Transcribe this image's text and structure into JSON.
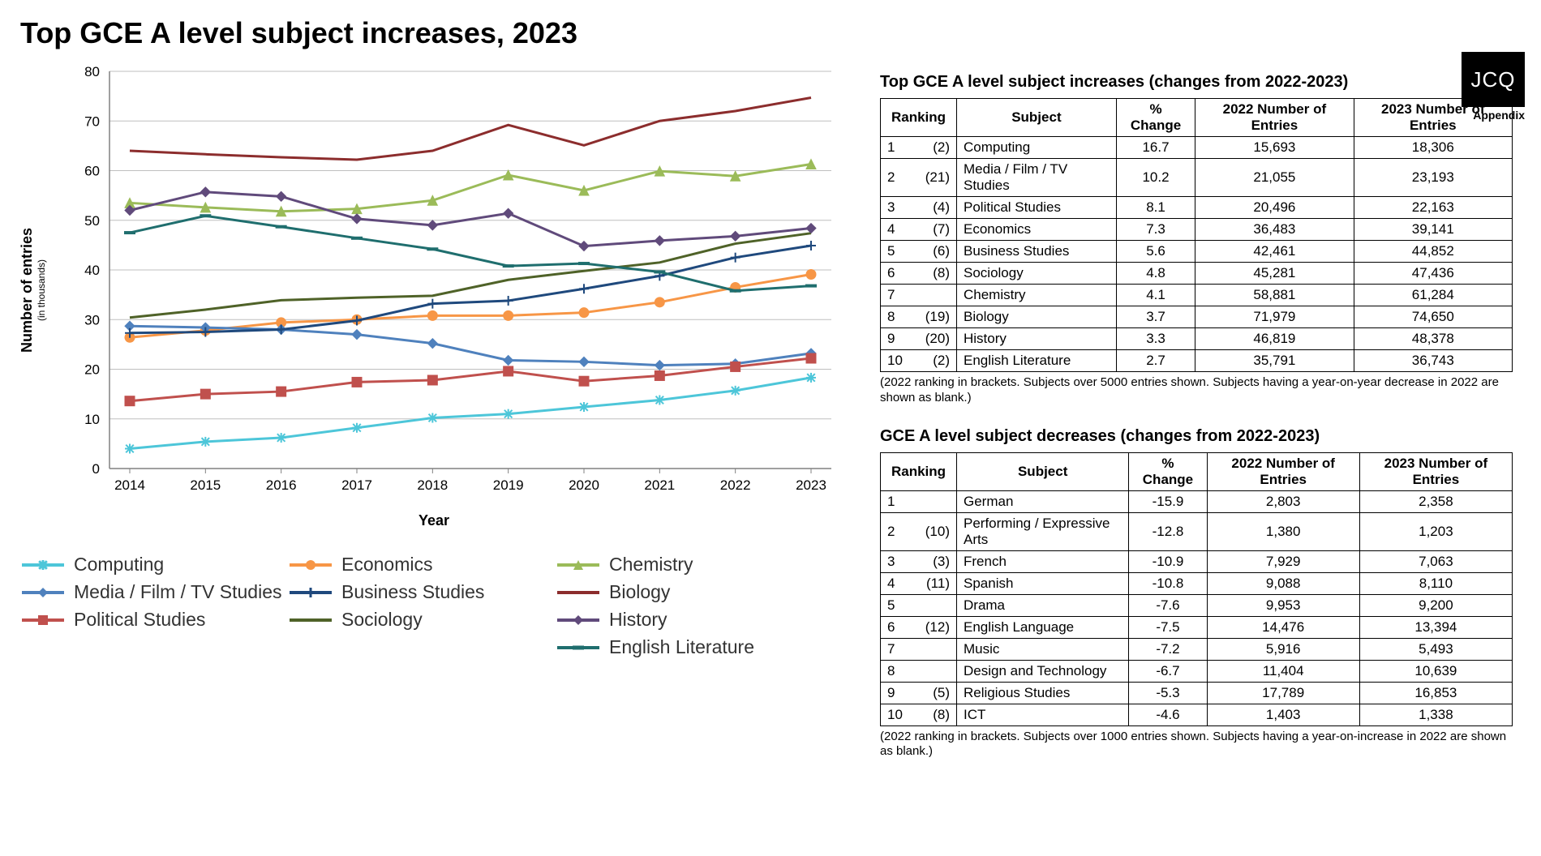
{
  "title": "Top GCE A level subject increases, 2023",
  "logo": {
    "text": "JCQ",
    "subtext": "Appendix"
  },
  "chart": {
    "type": "line",
    "y_label": "Number of entries",
    "y_sublabel": "(in thousands)",
    "x_label": "Year",
    "background_color": "#ffffff",
    "gridline_color": "#bfbfbf",
    "axis_color": "#808080",
    "tick_font_size": 17,
    "label_font_size": 18,
    "categories": [
      "2014",
      "2015",
      "2016",
      "2017",
      "2018",
      "2019",
      "2020",
      "2021",
      "2022",
      "2023"
    ],
    "ylim": [
      0,
      80
    ],
    "ytick_step": 10,
    "line_width": 3,
    "marker_size": 6,
    "series": [
      {
        "name": "Computing",
        "color": "#4dc6d9",
        "marker": "star",
        "values": [
          4.0,
          5.4,
          6.2,
          8.2,
          10.2,
          11.0,
          12.4,
          13.8,
          15.7,
          18.3
        ]
      },
      {
        "name": "Economics",
        "color": "#f79646",
        "marker": "circle",
        "values": [
          26.4,
          27.8,
          29.4,
          30.0,
          30.8,
          30.8,
          31.4,
          33.5,
          36.5,
          39.1
        ]
      },
      {
        "name": "Chemistry",
        "color": "#9bbb59",
        "marker": "triangle",
        "values": [
          53.5,
          52.6,
          51.8,
          52.3,
          54.0,
          59.1,
          56.0,
          59.9,
          58.9,
          61.3
        ]
      },
      {
        "name": "Media / Film / TV Studies",
        "color": "#4f81bd",
        "marker": "diamond",
        "values": [
          28.7,
          28.4,
          28.0,
          27.0,
          25.2,
          21.8,
          21.5,
          20.8,
          21.1,
          23.2
        ]
      },
      {
        "name": "Business Studies",
        "color": "#1f497d",
        "marker": "plus",
        "values": [
          27.3,
          27.5,
          28.0,
          29.8,
          33.2,
          33.8,
          36.2,
          38.8,
          42.5,
          44.9
        ]
      },
      {
        "name": "Biology",
        "color": "#8c2d2d",
        "marker": "none",
        "values": [
          64.0,
          63.3,
          62.7,
          62.2,
          64.0,
          69.2,
          65.1,
          70.0,
          72.0,
          74.7
        ]
      },
      {
        "name": "Political Studies",
        "color": "#c0504d",
        "marker": "square",
        "values": [
          13.6,
          15.0,
          15.5,
          17.4,
          17.8,
          19.6,
          17.6,
          18.7,
          20.5,
          22.2
        ]
      },
      {
        "name": "Sociology",
        "color": "#4f6228",
        "marker": "none",
        "values": [
          30.4,
          32.0,
          33.9,
          34.4,
          34.8,
          38.0,
          39.8,
          41.5,
          45.3,
          47.4
        ]
      },
      {
        "name": "History",
        "color": "#604a7b",
        "marker": "diamond",
        "values": [
          52.0,
          55.7,
          54.8,
          50.3,
          49.0,
          51.4,
          44.8,
          45.9,
          46.8,
          48.4
        ]
      },
      {
        "name": "English Literature",
        "color": "#1f6e6e",
        "marker": "dash",
        "values": [
          47.5,
          50.9,
          48.7,
          46.4,
          44.2,
          40.8,
          41.3,
          39.6,
          35.8,
          36.8
        ]
      }
    ]
  },
  "legend_order": [
    "Computing",
    "Economics",
    "Chemistry",
    "Media / Film / TV Studies",
    "Business Studies",
    "Biology",
    "Political Studies",
    "Sociology",
    "History",
    "",
    "",
    "English Literature"
  ],
  "increases_table": {
    "title": "Top GCE A level subject increases (changes from 2022-2023)",
    "columns": [
      "Ranking",
      "Subject",
      "% Change",
      "2022 Number of Entries",
      "2023 Number of Entries"
    ],
    "rows": [
      {
        "rank": "1",
        "prev": "(2)",
        "subject": "Computing",
        "pct": "16.7",
        "y2022": "15,693",
        "y2023": "18,306"
      },
      {
        "rank": "2",
        "prev": "(21)",
        "subject": "Media / Film / TV Studies",
        "pct": "10.2",
        "y2022": "21,055",
        "y2023": "23,193"
      },
      {
        "rank": "3",
        "prev": "(4)",
        "subject": "Political Studies",
        "pct": "8.1",
        "y2022": "20,496",
        "y2023": "22,163"
      },
      {
        "rank": "4",
        "prev": "(7)",
        "subject": "Economics",
        "pct": "7.3",
        "y2022": "36,483",
        "y2023": "39,141"
      },
      {
        "rank": "5",
        "prev": "(6)",
        "subject": "Business Studies",
        "pct": "5.6",
        "y2022": "42,461",
        "y2023": "44,852"
      },
      {
        "rank": "6",
        "prev": "(8)",
        "subject": "Sociology",
        "pct": "4.8",
        "y2022": "45,281",
        "y2023": "47,436"
      },
      {
        "rank": "7",
        "prev": "",
        "subject": "Chemistry",
        "pct": "4.1",
        "y2022": "58,881",
        "y2023": "61,284"
      },
      {
        "rank": "8",
        "prev": "(19)",
        "subject": "Biology",
        "pct": "3.7",
        "y2022": "71,979",
        "y2023": "74,650"
      },
      {
        "rank": "9",
        "prev": "(20)",
        "subject": "History",
        "pct": "3.3",
        "y2022": "46,819",
        "y2023": "48,378"
      },
      {
        "rank": "10",
        "prev": "(2)",
        "subject": "English Literature",
        "pct": "2.7",
        "y2022": "35,791",
        "y2023": "36,743"
      }
    ],
    "footnote": "(2022 ranking in brackets. Subjects over 5000 entries shown. Subjects having a year-on-year decrease in 2022 are shown as blank.)"
  },
  "decreases_table": {
    "title": "GCE A level subject decreases (changes from 2022-2023)",
    "columns": [
      "Ranking",
      "Subject",
      "% Change",
      "2022 Number of Entries",
      "2023 Number of Entries"
    ],
    "rows": [
      {
        "rank": "1",
        "prev": "",
        "subject": "German",
        "pct": "-15.9",
        "y2022": "2,803",
        "y2023": "2,358"
      },
      {
        "rank": "2",
        "prev": "(10)",
        "subject": "Performing / Expressive Arts",
        "pct": "-12.8",
        "y2022": "1,380",
        "y2023": "1,203"
      },
      {
        "rank": "3",
        "prev": "(3)",
        "subject": "French",
        "pct": "-10.9",
        "y2022": "7,929",
        "y2023": "7,063"
      },
      {
        "rank": "4",
        "prev": "(11)",
        "subject": "Spanish",
        "pct": "-10.8",
        "y2022": "9,088",
        "y2023": "8,110"
      },
      {
        "rank": "5",
        "prev": "",
        "subject": "Drama",
        "pct": "-7.6",
        "y2022": "9,953",
        "y2023": "9,200"
      },
      {
        "rank": "6",
        "prev": "(12)",
        "subject": "English Language",
        "pct": "-7.5",
        "y2022": "14,476",
        "y2023": "13,394"
      },
      {
        "rank": "7",
        "prev": "",
        "subject": "Music",
        "pct": "-7.2",
        "y2022": "5,916",
        "y2023": "5,493"
      },
      {
        "rank": "8",
        "prev": "",
        "subject": "Design and Technology",
        "pct": "-6.7",
        "y2022": "11,404",
        "y2023": "10,639"
      },
      {
        "rank": "9",
        "prev": "(5)",
        "subject": "Religious Studies",
        "pct": "-5.3",
        "y2022": "17,789",
        "y2023": "16,853"
      },
      {
        "rank": "10",
        "prev": "(8)",
        "subject": "ICT",
        "pct": "-4.6",
        "y2022": "1,403",
        "y2023": "1,338"
      }
    ],
    "footnote": "(2022 ranking in brackets. Subjects over 1000 entries shown. Subjects having a year-on-increase in 2022 are shown as blank.)"
  }
}
